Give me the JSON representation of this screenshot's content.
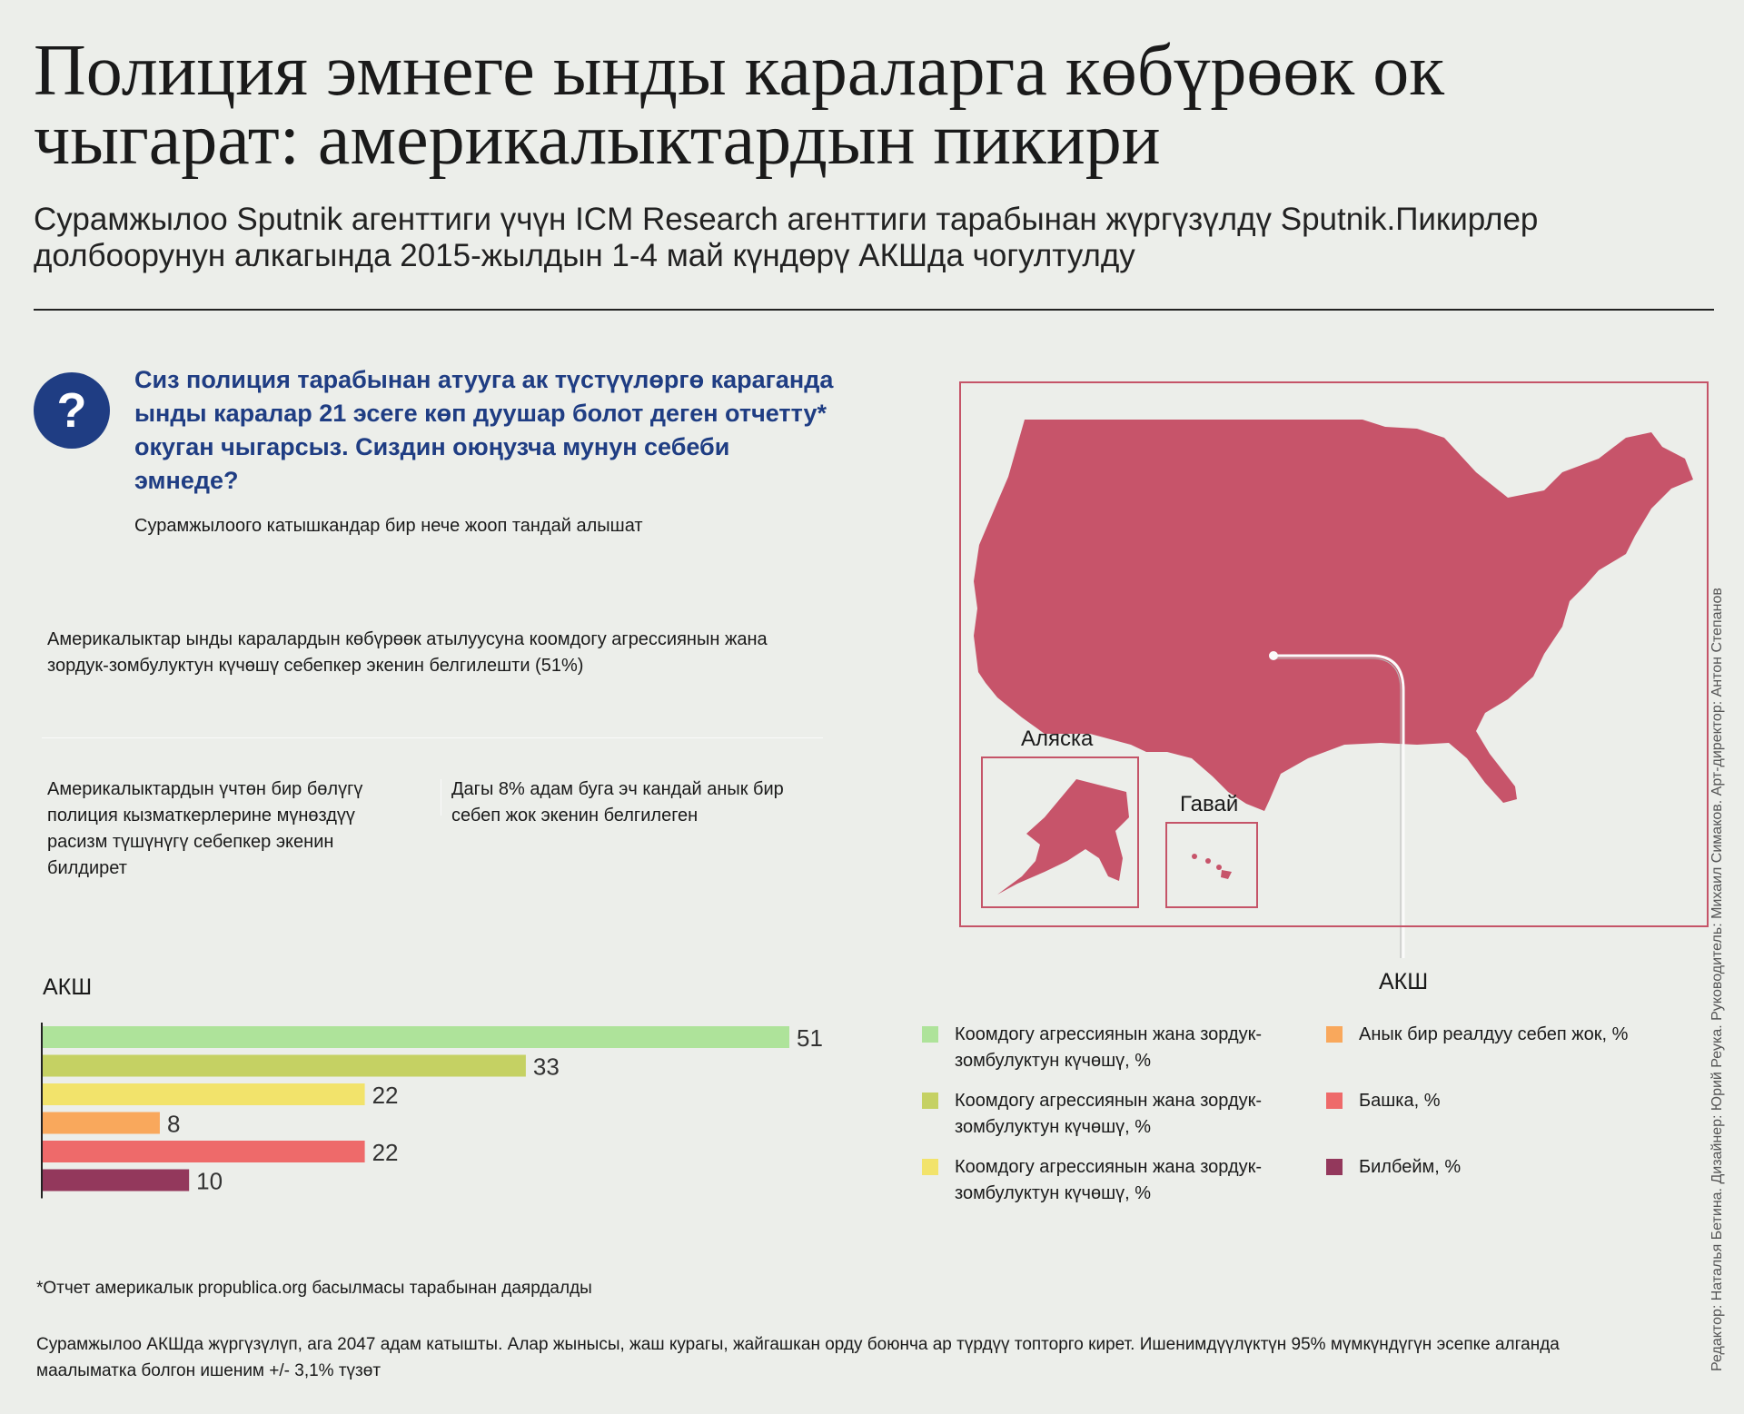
{
  "header": {
    "title": "Полиция эмнеге ынды караларга көбүрөөк ок чыгарат: америкалыктардын пикири",
    "subtitle": "Сурамжылоо Sputnik агенттиги үчүн ICM Research агенттиги тарабынан жүргүзүлдү Sputnik.Пикирлер долбоорунун алкагында 2015-жылдын 1-4 май күндөрү АКШда чогултулду"
  },
  "question": {
    "icon": "?",
    "text": "Сиз полиция тарабынан атууга ак түстүүлөргө караганда ынды каралар 21 эсеге көп дуушар болот деген отчетту* окуган чыгарсыз. Сиздин оюңузча мунун себеби эмнеде?",
    "note": "Сурамжылоого катышкандар бир нече жооп тандай алышат"
  },
  "facts": {
    "fact1": "Америкалыктар ынды каралардын көбүрөөк атылуусуна коомдогу агрессиянын жана зордук-зомбулуктун күчөшү себепкер экенин белгилешти (51%)",
    "fact2": "Америкалыктардын үчтөн бир бөлүгү полиция кызматкерлерине мүнөздүү расизм түшүнүгү себепкер экенин билдирет",
    "fact3": "Дагы 8% адам буга эч кандай анык бир себеп жок экенин белгилеген"
  },
  "chart_data": {
    "type": "bar",
    "orientation": "horizontal",
    "title": "АКШ",
    "categories": [
      "Коомдогу агрессиянын жана зордук-зомбулуктун күчөшү, %",
      "Коомдогу агрессиянын жана зордук-зомбулуктун күчөшү, %",
      "Коомдогу агрессиянын жана зордук-зомбулуктун күчөшү, %",
      "Анык бир реалдуу себеп жок, %",
      "Башка, %",
      "Билбейм, %"
    ],
    "values": [
      51,
      33,
      22,
      8,
      22,
      10
    ],
    "colors": [
      "#aee39a",
      "#c5d163",
      "#f2e36b",
      "#f9a85c",
      "#ee6a6a",
      "#93385c"
    ],
    "xlim": [
      0,
      60
    ],
    "legend": "bottom-right"
  },
  "map": {
    "country_label": "АКШ",
    "alaska_label": "Аляска",
    "hawaii_label": "Гавай",
    "fill_color": "#c7546a"
  },
  "legend_items": [
    {
      "label": "Коомдогу агрессиянын жана зордук-зомбулуктун күчөшү, %",
      "color": "#aee39a"
    },
    {
      "label": "Коомдогу агрессиянын жана зордук-зомбулуктун күчөшү, %",
      "color": "#c5d163"
    },
    {
      "label": "Коомдогу агрессиянын жана зордук-зомбулуктун күчөшү, %",
      "color": "#f2e36b"
    },
    {
      "label": "Анык бир реалдуу себеп жок, %",
      "color": "#f9a85c"
    },
    {
      "label": "Башка, %",
      "color": "#ee6a6a"
    },
    {
      "label": "Билбейм, %",
      "color": "#93385c"
    }
  ],
  "footer": {
    "footnote": "*Отчет америкалык propublica.org басылмасы тарабынан даярдалды",
    "methodology": "Сурамжылоо АКШда жүргүзүлүп, ага 2047 адам катышты. Алар жынысы, жаш курагы, жайгашкан орду боюнча ар түрдүү топторго кирет. Ишенимдүүлүктүн 95% мүмкүндүгүн эсепке алганда маалыматка болгон ишеним +/- 3,1% түзөт",
    "credits": "Редактор: Наталья Бетина. Дизайнер: Юрий Реука. Руководитель: Михаил Симаков. Арт-директор: Антон Степанов"
  }
}
